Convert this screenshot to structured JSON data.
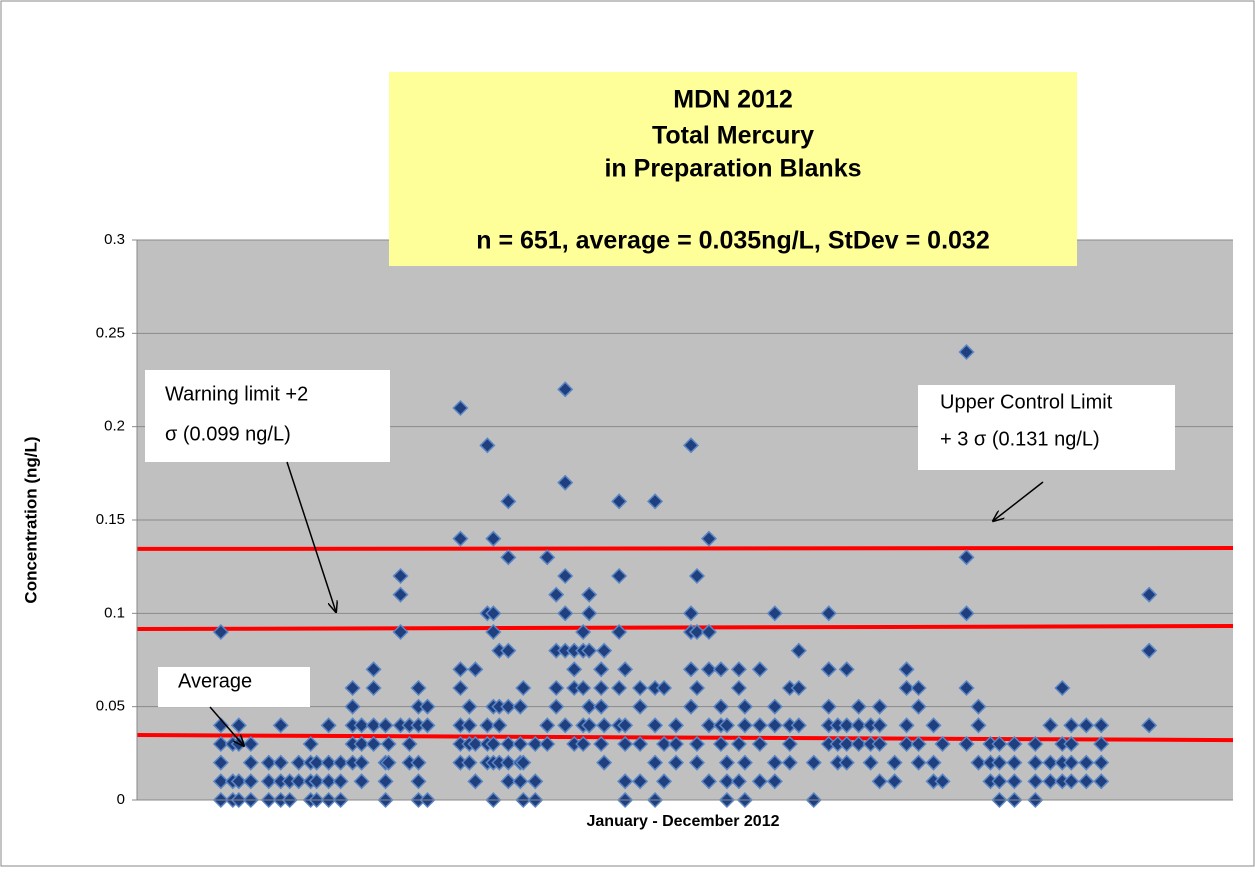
{
  "chart_data": {
    "type": "scatter",
    "title": [
      "MDN 2012",
      "Total Mercury",
      "in Preparation Blanks",
      "n = 651, average = 0.035ng/L, StDev = 0.032"
    ],
    "x_label": "January - December 2012",
    "y_label": "Concentration (ng/L)",
    "xlim": [
      0,
      366
    ],
    "ylim": [
      0,
      0.3
    ],
    "yticks": [
      0,
      0.05,
      0.1,
      0.15,
      0.2,
      0.25,
      0.3
    ],
    "grid": true,
    "color": "#1f3f7f",
    "x": [
      28,
      28,
      28,
      28,
      28,
      28,
      32,
      32,
      32,
      34,
      34,
      34,
      34,
      38,
      38,
      38,
      38,
      44,
      44,
      44,
      48,
      48,
      48,
      48,
      51,
      51,
      54,
      54,
      58,
      58,
      58,
      58,
      60,
      60,
      60,
      64,
      64,
      64,
      64,
      68,
      68,
      68,
      72,
      72,
      72,
      72,
      72,
      75,
      75,
      75,
      75,
      79,
      79,
      79,
      79,
      83,
      83,
      83,
      83,
      84,
      84,
      88,
      88,
      88,
      88,
      91,
      91,
      91,
      94,
      94,
      94,
      94,
      94,
      94,
      97,
      97,
      97,
      108,
      108,
      108,
      108,
      108,
      108,
      108,
      111,
      111,
      111,
      111,
      113,
      113,
      113,
      117,
      117,
      117,
      117,
      117,
      119,
      119,
      119,
      119,
      119,
      119,
      119,
      121,
      121,
      121,
      121,
      124,
      124,
      124,
      124,
      124,
      124,
      124,
      128,
      128,
      128,
      128,
      129,
      129,
      129,
      133,
      133,
      133,
      137,
      137,
      137,
      140,
      140,
      140,
      140,
      143,
      143,
      143,
      143,
      143,
      143,
      146,
      146,
      146,
      146,
      149,
      149,
      149,
      149,
      149,
      151,
      151,
      151,
      151,
      151,
      155,
      155,
      155,
      155,
      156,
      156,
      156,
      161,
      161,
      161,
      161,
      161,
      163,
      163,
      163,
      163,
      163,
      168,
      168,
      168,
      168,
      173,
      173,
      173,
      173,
      173,
      176,
      176,
      176,
      180,
      180,
      180,
      185,
      185,
      185,
      185,
      185,
      187,
      187,
      187,
      187,
      187,
      191,
      191,
      191,
      191,
      191,
      195,
      195,
      195,
      195,
      197,
      197,
      197,
      197,
      201,
      201,
      201,
      201,
      203,
      203,
      203,
      203,
      208,
      208,
      208,
      208,
      213,
      213,
      213,
      213,
      213,
      218,
      218,
      218,
      218,
      221,
      221,
      221,
      226,
      226,
      231,
      231,
      231,
      231,
      231,
      234,
      234,
      234,
      237,
      237,
      237,
      237,
      241,
      241,
      241,
      245,
      245,
      245,
      248,
      248,
      248,
      248,
      253,
      253,
      257,
      257,
      257,
      257,
      261,
      261,
      261,
      261,
      266,
      266,
      266,
      269,
      269,
      277,
      277,
      277,
      277,
      277,
      281,
      281,
      281,
      285,
      285,
      285,
      288,
      288,
      288,
      288,
      293,
      293,
      293,
      293,
      300,
      300,
      300,
      300,
      305,
      305,
      305,
      309,
      309,
      309,
      309,
      312,
      312,
      312,
      312,
      317,
      317,
      317,
      322,
      322,
      322,
      322,
      338,
      338,
      338
    ],
    "values": [
      0.09,
      0.04,
      0.03,
      0.02,
      0.01,
      0,
      0.03,
      0.01,
      0,
      0.04,
      0.03,
      0.01,
      0,
      0.03,
      0.02,
      0.01,
      0,
      0.02,
      0.01,
      0,
      0.04,
      0.02,
      0.01,
      0,
      0.01,
      0,
      0.02,
      0.01,
      0.02,
      0.03,
      0.01,
      0,
      0.02,
      0.01,
      0,
      0.02,
      0.04,
      0.01,
      0,
      0.02,
      0.01,
      0,
      0.06,
      0.05,
      0.04,
      0.03,
      0.02,
      0.04,
      0.03,
      0.02,
      0.01,
      0.07,
      0.06,
      0.04,
      0.03,
      0.04,
      0.02,
      0.01,
      0,
      0.03,
      0.02,
      0.12,
      0.11,
      0.09,
      0.04,
      0.04,
      0.03,
      0.02,
      0.06,
      0.05,
      0.04,
      0.02,
      0.01,
      0,
      0.05,
      0.04,
      0,
      0.21,
      0.14,
      0.07,
      0.06,
      0.04,
      0.03,
      0.02,
      0.05,
      0.04,
      0.03,
      0.02,
      0.07,
      0.03,
      0.01,
      0.19,
      0.1,
      0.04,
      0.03,
      0.02,
      0.14,
      0.1,
      0.09,
      0.05,
      0.03,
      0.02,
      0,
      0.08,
      0.05,
      0.04,
      0.02,
      0.16,
      0.13,
      0.08,
      0.05,
      0.03,
      0.02,
      0.01,
      0.05,
      0.03,
      0.02,
      0.01,
      0.06,
      0.02,
      0,
      0.03,
      0.01,
      0,
      0.13,
      0.04,
      0.03,
      0.11,
      0.08,
      0.06,
      0.05,
      0.22,
      0.17,
      0.12,
      0.1,
      0.08,
      0.04,
      0.08,
      0.07,
      0.06,
      0.03,
      0.09,
      0.08,
      0.06,
      0.04,
      0.03,
      0.11,
      0.1,
      0.08,
      0.05,
      0.04,
      0.07,
      0.06,
      0.05,
      0.03,
      0.08,
      0.04,
      0.02,
      0.16,
      0.12,
      0.09,
      0.06,
      0.04,
      0.07,
      0.04,
      0.03,
      0.01,
      0,
      0.06,
      0.05,
      0.03,
      0.01,
      0.16,
      0.06,
      0.04,
      0.02,
      0,
      0.06,
      0.03,
      0.01,
      0.04,
      0.03,
      0.02,
      0.19,
      0.1,
      0.09,
      0.07,
      0.05,
      0.12,
      0.09,
      0.06,
      0.03,
      0.02,
      0.14,
      0.09,
      0.07,
      0.04,
      0.01,
      0.07,
      0.05,
      0.04,
      0.03,
      0.04,
      0.02,
      0.01,
      0,
      0.07,
      0.06,
      0.03,
      0.01,
      0.05,
      0.04,
      0.02,
      0,
      0.07,
      0.04,
      0.03,
      0.01,
      0.1,
      0.05,
      0.04,
      0.02,
      0.01,
      0.06,
      0.04,
      0.03,
      0.02,
      0.08,
      0.06,
      0.04,
      0.02,
      0,
      0.1,
      0.07,
      0.05,
      0.04,
      0.03,
      0.04,
      0.03,
      0.02,
      0.07,
      0.04,
      0.03,
      0.02,
      0.05,
      0.04,
      0.03,
      0.04,
      0.03,
      0.02,
      0.05,
      0.04,
      0.03,
      0.01,
      0.02,
      0.01,
      0.07,
      0.06,
      0.04,
      0.03,
      0.06,
      0.05,
      0.03,
      0.02,
      0.04,
      0.02,
      0.01,
      0.03,
      0.01,
      0.24,
      0.13,
      0.1,
      0.06,
      0.03,
      0.05,
      0.04,
      0.02,
      0.03,
      0.02,
      0.01,
      0.03,
      0.02,
      0.01,
      0,
      0.03,
      0.02,
      0.01,
      0,
      0.03,
      0.02,
      0.01,
      0,
      0.04,
      0.02,
      0.01,
      0.06,
      0.03,
      0.02,
      0.01,
      0.04,
      0.03,
      0.02,
      0.01,
      0.04,
      0.02,
      0.01,
      0.04,
      0.03,
      0.02,
      0.01,
      0.11,
      0.08,
      0.04
    ],
    "reference_lines": [
      {
        "values": [
          0.1345,
          0.135
        ],
        "color": "#ff0000"
      },
      {
        "values": [
          0.0916,
          0.0932
        ],
        "color": "#ff0000"
      },
      {
        "values": [
          0.0348,
          0.0321
        ],
        "color": "#ff0000"
      }
    ],
    "annotations": [
      {
        "lines": [
          "Warning limit +2",
          "σ (0.099 ng/L)"
        ]
      },
      {
        "lines": [
          "Upper Control Limit",
          "+ 3 σ (0.131 ng/L)"
        ]
      },
      {
        "lines": [
          "Average"
        ]
      }
    ]
  }
}
